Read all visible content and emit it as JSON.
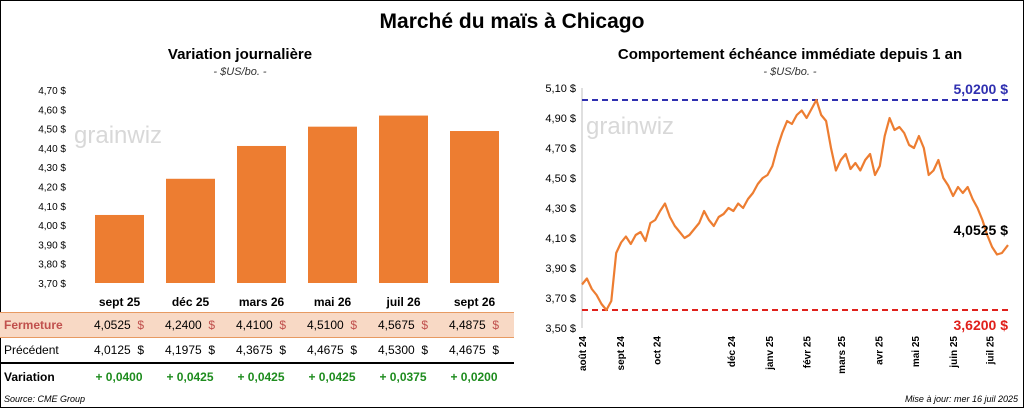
{
  "header": {
    "title": "Marché du maïs à Chicago"
  },
  "left_panel": {
    "title": "Variation journalière",
    "unit": "- $US/bo. -",
    "watermark": "grainwiz",
    "table": {
      "rows": [
        {
          "label": "Fermeture",
          "values": [
            "4,0525",
            "4,2400",
            "4,4100",
            "4,5100",
            "4,5675",
            "4,4875"
          ],
          "currency": "$"
        },
        {
          "label": "Précédent",
          "values": [
            "4,0125",
            "4,1975",
            "4,3675",
            "4,4675",
            "4,5300",
            "4,4675"
          ],
          "currency": "$"
        },
        {
          "label": "Variation",
          "values": [
            "+ 0,0400",
            "+ 0,0425",
            "+ 0,0425",
            "+ 0,0425",
            "+ 0,0375",
            "+ 0,0200"
          ]
        }
      ]
    }
  },
  "right_panel": {
    "title": "Comportement échéance immédiate depuis 1 an",
    "unit": "- $US/bo. -",
    "watermark": "grainwiz"
  },
  "footer": {
    "source": "Source: CME Group",
    "updated": "Mise à jour: mer 16 juil 2025"
  },
  "colors": {
    "bar": "#ed7d31",
    "line": "#ed7d31",
    "high_line": "#2f2fb0",
    "low_line": "#e0201b",
    "positive": "#1e8c1e"
  },
  "chart_data": [
    {
      "type": "bar",
      "title": "Variation journalière",
      "categories": [
        "sept 25",
        "déc 25",
        "mars 26",
        "mai 26",
        "juil 26",
        "sept 26"
      ],
      "values": [
        4.0525,
        4.24,
        4.41,
        4.51,
        4.5675,
        4.4875
      ],
      "yticks": [
        "3,70 $",
        "3,80 $",
        "3,90 $",
        "4,00 $",
        "4,10 $",
        "4,20 $",
        "4,30 $",
        "4,40 $",
        "4,50 $",
        "4,60 $",
        "4,70 $"
      ],
      "ylim": [
        3.7,
        4.7
      ],
      "grid": false
    },
    {
      "type": "line",
      "title": "Comportement échéance immédiate depuis 1 an",
      "xticks": [
        "août 24",
        "sept 24",
        "oct 24",
        "déc 24",
        "janv 25",
        "févr 25",
        "mars 25",
        "avr 25",
        "mai 25",
        "juin 25",
        "juil 25"
      ],
      "xtick_dates": [
        "2024-08-01",
        "2024-09-01",
        "2024-10-01",
        "2024-12-01",
        "2025-01-01",
        "2025-02-01",
        "2025-03-01",
        "2025-04-01",
        "2025-05-01",
        "2025-06-01",
        "2025-07-01"
      ],
      "xlim": [
        "2024-08-01",
        "2025-07-16"
      ],
      "yticks": [
        "3,50 $",
        "3,70 $",
        "3,90 $",
        "4,10 $",
        "4,30 $",
        "4,50 $",
        "4,70 $",
        "4,90 $",
        "5,10 $"
      ],
      "ylim": [
        3.5,
        5.1
      ],
      "high": {
        "value": 5.02,
        "label": "5,0200 $"
      },
      "low": {
        "value": 3.62,
        "label": "3,6200 $"
      },
      "last": {
        "value": 4.0525,
        "label": "4,0525 $"
      },
      "series": [
        {
          "x": [
            "2024-08-01",
            "2024-08-05",
            "2024-08-09",
            "2024-08-13",
            "2024-08-17",
            "2024-08-21",
            "2024-08-25",
            "2024-08-29",
            "2024-09-02",
            "2024-09-06",
            "2024-09-10",
            "2024-09-14",
            "2024-09-18",
            "2024-09-22",
            "2024-09-26",
            "2024-09-30",
            "2024-10-04",
            "2024-10-08",
            "2024-10-12",
            "2024-10-16",
            "2024-10-20",
            "2024-10-24",
            "2024-10-28",
            "2024-11-01",
            "2024-11-05",
            "2024-11-09",
            "2024-11-13",
            "2024-11-17",
            "2024-11-21",
            "2024-11-25",
            "2024-11-29",
            "2024-12-03",
            "2024-12-07",
            "2024-12-11",
            "2024-12-15",
            "2024-12-19",
            "2024-12-23",
            "2024-12-27",
            "2024-12-31",
            "2025-01-04",
            "2025-01-08",
            "2025-01-12",
            "2025-01-16",
            "2025-01-20",
            "2025-01-24",
            "2025-01-28",
            "2025-02-01",
            "2025-02-05",
            "2025-02-09",
            "2025-02-13",
            "2025-02-17",
            "2025-02-21",
            "2025-02-25",
            "2025-03-01",
            "2025-03-05",
            "2025-03-09",
            "2025-03-13",
            "2025-03-17",
            "2025-03-21",
            "2025-03-25",
            "2025-03-29",
            "2025-04-02",
            "2025-04-06",
            "2025-04-10",
            "2025-04-14",
            "2025-04-18",
            "2025-04-22",
            "2025-04-26",
            "2025-04-30",
            "2025-05-04",
            "2025-05-08",
            "2025-05-12",
            "2025-05-16",
            "2025-05-20",
            "2025-05-24",
            "2025-05-28",
            "2025-06-01",
            "2025-06-05",
            "2025-06-09",
            "2025-06-13",
            "2025-06-17",
            "2025-06-21",
            "2025-06-25",
            "2025-06-29",
            "2025-07-03",
            "2025-07-07",
            "2025-07-11",
            "2025-07-16"
          ],
          "y": [
            3.79,
            3.83,
            3.76,
            3.72,
            3.66,
            3.62,
            3.68,
            4.0,
            4.07,
            4.11,
            4.06,
            4.12,
            4.14,
            4.08,
            4.2,
            4.22,
            4.28,
            4.33,
            4.24,
            4.18,
            4.14,
            4.1,
            4.12,
            4.16,
            4.2,
            4.28,
            4.22,
            4.18,
            4.24,
            4.26,
            4.3,
            4.28,
            4.33,
            4.3,
            4.36,
            4.4,
            4.46,
            4.5,
            4.52,
            4.58,
            4.7,
            4.8,
            4.88,
            4.86,
            4.92,
            4.95,
            4.9,
            4.96,
            5.02,
            4.92,
            4.88,
            4.7,
            4.55,
            4.62,
            4.66,
            4.56,
            4.6,
            4.55,
            4.62,
            4.66,
            4.52,
            4.58,
            4.78,
            4.9,
            4.82,
            4.84,
            4.8,
            4.72,
            4.7,
            4.78,
            4.7,
            4.52,
            4.55,
            4.62,
            4.5,
            4.45,
            4.38,
            4.44,
            4.4,
            4.44,
            4.36,
            4.3,
            4.22,
            4.12,
            4.04,
            3.99,
            4.0,
            4.0525
          ]
        }
      ]
    }
  ]
}
